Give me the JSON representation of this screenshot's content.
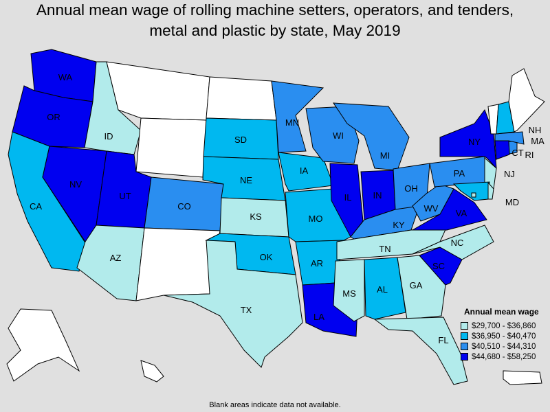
{
  "title": "Annual mean wage of rolling machine setters, operators, and tenders, metal and plastic by state, May 2019",
  "legend": {
    "title": "Annual mean wage",
    "bins": [
      {
        "range": "$29,700 - $36,860",
        "color": "#b2ebeb"
      },
      {
        "range": "$36,950 - $40,470",
        "color": "#00b8f0"
      },
      {
        "range": "$40,510 - $44,310",
        "color": "#2a8ef0"
      },
      {
        "range": "$44,680 - $58,250",
        "color": "#0000f0"
      }
    ]
  },
  "no_data_color": "#ffffff",
  "footnote": "Blank areas indicate data not available.",
  "chart_data": {
    "type": "choropleth",
    "title": "Annual mean wage of rolling machine setters, operators, and tenders, metal and plastic by state, May 2019",
    "bins": [
      "$29,700 - $36,860",
      "$36,950 - $40,470",
      "$40,510 - $44,310",
      "$44,680 - $58,250"
    ],
    "states": {
      "WA": 3,
      "OR": 3,
      "CA": 1,
      "NV": 3,
      "ID": 0,
      "UT": 3,
      "AZ": 0,
      "CO": 2,
      "SD": 1,
      "NE": 1,
      "KS": 0,
      "OK": 1,
      "TX": 0,
      "MN": 2,
      "IA": 1,
      "MO": 1,
      "AR": 1,
      "LA": 3,
      "WI": 2,
      "IL": 3,
      "MI": 2,
      "IN": 3,
      "OH": 2,
      "KY": 2,
      "TN": 0,
      "MS": 0,
      "AL": 1,
      "GA": 0,
      "FL": 0,
      "SC": 3,
      "NC": 0,
      "VA": 3,
      "WV": 2,
      "PA": 2,
      "NY": 3,
      "NJ": 0,
      "MD": 1,
      "CT": 3,
      "RI": 2,
      "MA": 2,
      "NH": 1,
      "DE": 0,
      "DC": 0,
      "MT": null,
      "WY": null,
      "ND": null,
      "NM": null,
      "ME": null,
      "VT": null,
      "AK": null,
      "HI": null,
      "PR": null
    }
  }
}
